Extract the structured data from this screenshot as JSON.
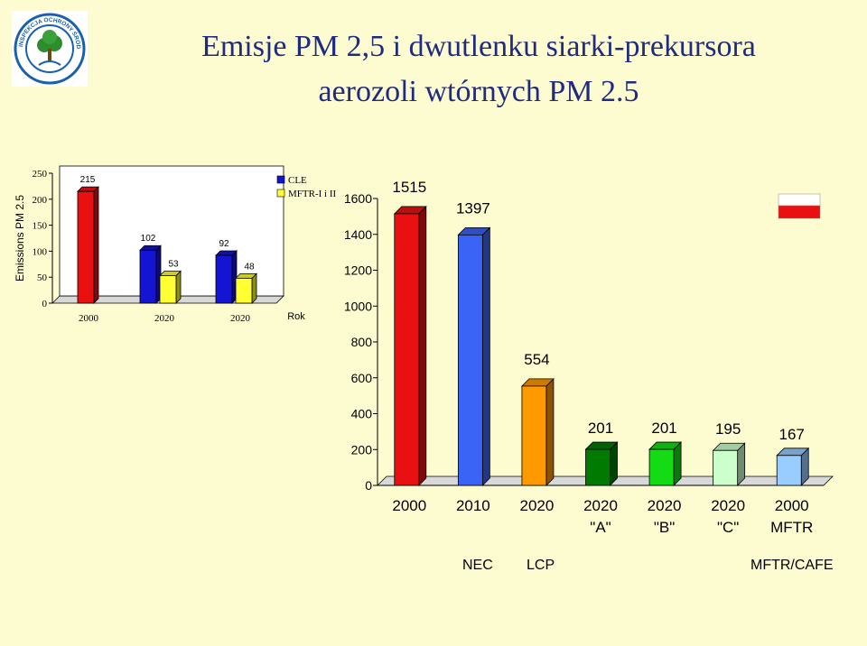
{
  "title_line1": "Emisje PM 2,5 i dwutlenku siarki-prekursora",
  "title_line2": "aerozoli wtórnych PM 2.5",
  "logo_text": "INSPEKCJA OCHRONY ŚRODOWISKA",
  "colors": {
    "background": "#fdfcd0",
    "title": "#1f2a80"
  },
  "bottom_labels": {
    "nec": "NEC",
    "lcp": "LCP",
    "mftr": "MFTR/CAFE"
  },
  "chart_data": [
    {
      "type": "bar",
      "ylabel": "Emissions PM 2.5",
      "xlabel": "Rok",
      "ylim": [
        0,
        250
      ],
      "yticks": [
        0,
        50,
        100,
        150,
        200,
        250
      ],
      "categories": [
        "2000",
        "2020",
        "2020"
      ],
      "legend_position": "top-right",
      "series": [
        {
          "name": "CLE",
          "color": "#1414d2",
          "values": [
            215,
            102,
            92
          ]
        },
        {
          "name": "MFTR-I i II",
          "color": "#ffff33",
          "values": [
            null,
            53,
            48
          ]
        }
      ],
      "first_bar_color": "#e81010",
      "data_labels": [
        "215",
        "102",
        "53",
        "92",
        "48"
      ]
    },
    {
      "type": "bar",
      "ylim": [
        0,
        1600
      ],
      "yticks": [
        0,
        200,
        400,
        600,
        800,
        1000,
        1200,
        1400,
        1600
      ],
      "categories": [
        [
          "2000"
        ],
        [
          "2010"
        ],
        [
          "2020"
        ],
        [
          "2020",
          "\"A\""
        ],
        [
          "2020",
          "\"B\""
        ],
        [
          "2020",
          "\"C\""
        ],
        [
          "2000",
          "MFTR"
        ]
      ],
      "values": [
        1515,
        1397,
        554,
        201,
        201,
        195,
        167
      ],
      "colors": [
        "#e81010",
        "#3a64f5",
        "#ff9900",
        "#007a00",
        "#14dc14",
        "#ccffcc",
        "#99ccff"
      ],
      "data_labels": [
        "1515",
        "1397",
        "554",
        "201",
        "201",
        "195",
        "167"
      ]
    }
  ]
}
